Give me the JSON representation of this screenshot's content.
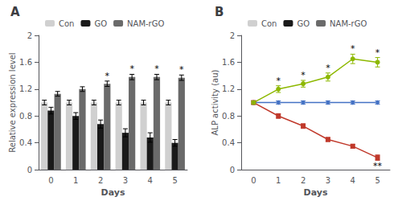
{
  "chart_data": [
    {
      "type": "bar",
      "title": "A",
      "xlabel": "Days",
      "ylabel": "Relative expression level",
      "categories": [
        "0",
        "1",
        "2",
        "3",
        "4",
        "5"
      ],
      "series": [
        {
          "name": "Con",
          "color": "#d0d0d0",
          "values": [
            1.0,
            1.0,
            1.0,
            1.0,
            1.0,
            1.0
          ],
          "errors": [
            0.035,
            0.035,
            0.035,
            0.035,
            0.035,
            0.035
          ]
        },
        {
          "name": "GO",
          "color": "#1a1a1a",
          "values": [
            0.88,
            0.8,
            0.68,
            0.55,
            0.48,
            0.4
          ],
          "errors": [
            0.05,
            0.05,
            0.06,
            0.06,
            0.07,
            0.05
          ]
        },
        {
          "name": "NAM-rGO",
          "color": "#6a6a6a",
          "values": [
            1.13,
            1.2,
            1.28,
            1.38,
            1.38,
            1.37
          ],
          "errors": [
            0.035,
            0.035,
            0.04,
            0.04,
            0.04,
            0.04
          ]
        }
      ],
      "ylim": [
        0,
        2.0
      ],
      "yticks": [
        0,
        0.4,
        0.8,
        1.2,
        1.6,
        2.0
      ],
      "grid": false,
      "legend": "upper center",
      "annotations": [
        {
          "text": "*",
          "series": "NAM-rGO",
          "category": "2",
          "position": "above"
        },
        {
          "text": "*",
          "series": "NAM-rGO",
          "category": "3",
          "position": "above"
        },
        {
          "text": "*",
          "series": "NAM-rGO",
          "category": "4",
          "position": "above"
        },
        {
          "text": "*",
          "series": "NAM-rGO",
          "category": "5",
          "position": "above"
        }
      ]
    },
    {
      "type": "line",
      "title": "B",
      "xlabel": "Days",
      "ylabel": "ALP activity (au)",
      "categories": [
        "0",
        "1",
        "2",
        "3",
        "4",
        "5"
      ],
      "series": [
        {
          "name": "Con",
          "color": "#4472c4",
          "marker": "diamond",
          "values": [
            1.0,
            1.0,
            1.0,
            1.0,
            1.0,
            1.0
          ],
          "errors": [
            0.025,
            0.025,
            0.025,
            0.025,
            0.025,
            0.025
          ]
        },
        {
          "name": "GO",
          "color": "#c0392b",
          "marker": "square",
          "values": [
            1.0,
            0.8,
            0.65,
            0.45,
            0.35,
            0.18
          ],
          "errors": [
            0.025,
            0.035,
            0.035,
            0.03,
            0.03,
            0.04
          ]
        },
        {
          "name": "NAM-rGO",
          "color": "#8db800",
          "marker": "circle",
          "values": [
            1.0,
            1.2,
            1.28,
            1.38,
            1.65,
            1.6
          ],
          "errors": [
            0.025,
            0.05,
            0.05,
            0.06,
            0.07,
            0.07
          ]
        }
      ],
      "ylim": [
        0,
        2.0
      ],
      "yticks": [
        0,
        0.4,
        0.8,
        1.2,
        1.6,
        2.0
      ],
      "grid": false,
      "legend": "upper center",
      "annotations": [
        {
          "text": "*",
          "series": "NAM-rGO",
          "category": "1",
          "position": "above"
        },
        {
          "text": "*",
          "series": "NAM-rGO",
          "category": "2",
          "position": "above"
        },
        {
          "text": "*",
          "series": "NAM-rGO",
          "category": "3",
          "position": "above"
        },
        {
          "text": "*",
          "series": "NAM-rGO",
          "category": "4",
          "position": "above"
        },
        {
          "text": "*",
          "series": "NAM-rGO",
          "category": "5",
          "position": "above"
        },
        {
          "text": "**",
          "series": "GO",
          "category": "5",
          "position": "below"
        }
      ]
    }
  ]
}
